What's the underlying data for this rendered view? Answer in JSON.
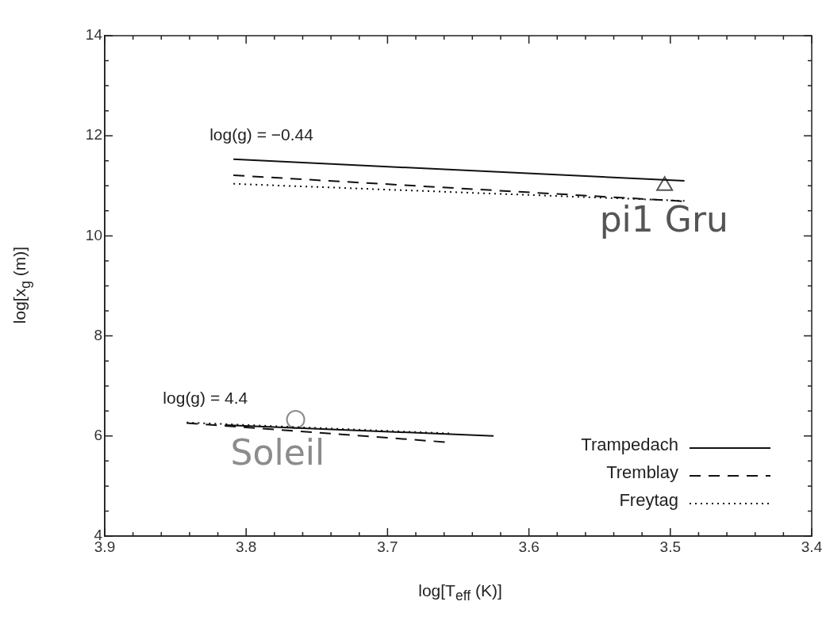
{
  "chart_data": {
    "type": "line",
    "xlabel": "log[T$_{eff}$ (K)]",
    "ylabel": "log[x$_{g}$ (m)]",
    "xlim": [
      3.9,
      3.4
    ],
    "ylim": [
      4,
      14
    ],
    "xticks": [
      3.9,
      {
        "value": 3.88,
        "label": null
      },
      {
        "value": 3.86,
        "label": null
      },
      {
        "value": 3.84,
        "label": null
      },
      {
        "value": 3.82,
        "label": null
      },
      3.8,
      {
        "value": 3.78,
        "label": null
      },
      {
        "value": 3.76,
        "label": null
      },
      {
        "value": 3.74,
        "label": null
      },
      {
        "value": 3.72,
        "label": null
      },
      3.7,
      {
        "value": 3.68,
        "label": null
      },
      {
        "value": 3.66,
        "label": null
      },
      {
        "value": 3.64,
        "label": null
      },
      {
        "value": 3.62,
        "label": null
      },
      3.6,
      {
        "value": 3.58,
        "label": null
      },
      {
        "value": 3.56,
        "label": null
      },
      {
        "value": 3.54,
        "label": null
      },
      {
        "value": 3.52,
        "label": null
      },
      3.5,
      {
        "value": 3.48,
        "label": null
      },
      {
        "value": 3.46,
        "label": null
      },
      {
        "value": 3.44,
        "label": null
      },
      {
        "value": 3.42,
        "label": null
      },
      3.4
    ],
    "yticks": [
      4,
      {
        "value": 4.5,
        "label": null
      },
      {
        "value": 5,
        "label": null
      },
      {
        "value": 5.5,
        "label": null
      },
      6,
      {
        "value": 6.5,
        "label": null
      },
      {
        "value": 7,
        "label": null
      },
      {
        "value": 7.5,
        "label": null
      },
      8,
      {
        "value": 8.5,
        "label": null
      },
      {
        "value": 9,
        "label": null
      },
      {
        "value": 9.5,
        "label": null
      },
      10,
      {
        "value": 10.5,
        "label": null
      },
      {
        "value": 11,
        "label": null
      },
      {
        "value": 11.5,
        "label": null
      },
      12,
      {
        "value": 12.5,
        "label": null
      },
      {
        "value": 13,
        "label": null
      },
      {
        "value": 13.5,
        "label": null
      },
      14
    ],
    "grid": false,
    "legend": "bottom right",
    "series": [
      {
        "name": "Trampedach",
        "color": "#111111",
        "line_style": "solid",
        "x": [
          3.815,
          3.625,
          3.7,
          3.809,
          3.49
        ],
        "values": [
          6.22,
          6.0,
          null,
          11.53,
          11.1
        ]
      },
      {
        "name": "Tremblay",
        "color": "#111111",
        "line_style": "dashed",
        "x": [
          3.842,
          3.655,
          3.7,
          3.809,
          3.49
        ],
        "values": [
          6.26,
          5.87,
          null,
          11.21,
          10.69
        ]
      },
      {
        "name": "Freytag",
        "color": "#111111",
        "line_style": "dotted",
        "x": [
          3.842,
          3.655,
          3.7,
          3.809,
          3.49
        ],
        "values": [
          6.27,
          6.05,
          null,
          11.04,
          10.7
        ]
      },
      {
        "name": "pi1 Gru",
        "type": "scatter",
        "marker": "triangle",
        "color": "#555555",
        "x": [
          3.504
        ],
        "values": [
          11.0
        ]
      },
      {
        "name": "Soleil",
        "type": "scatter",
        "marker": "circle",
        "color": "#8c8c8c",
        "x": [
          3.765
        ],
        "values": [
          6.33
        ]
      }
    ],
    "annotations": [
      {
        "text": "log(g) = −0.44",
        "x": 3.809,
        "y": 11.53
      },
      {
        "text": "log(g) = 4.4",
        "x": 3.842,
        "y": 6.26
      }
    ]
  }
}
